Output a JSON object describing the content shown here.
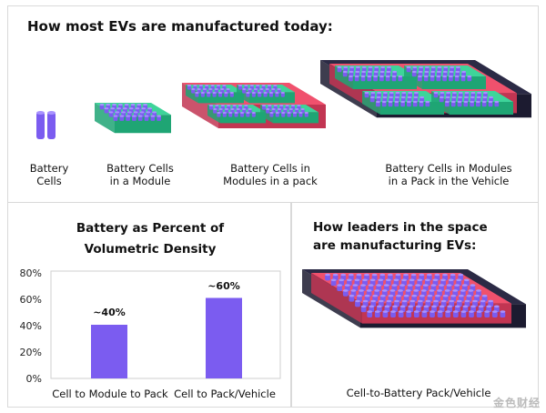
{
  "top_title": "How most EVs are manufactured today:",
  "stages": [
    {
      "label_line1": "Battery",
      "label_line2": "Cells"
    },
    {
      "label_line1": "Battery Cells",
      "label_line2": "in a Module"
    },
    {
      "label_line1": "Battery Cells in",
      "label_line2": "Modules in a pack"
    },
    {
      "label_line1": "Battery Cells in Modules",
      "label_line2": "in a Pack in the Vehicle"
    }
  ],
  "chart_title_line1": "Battery as Percent of",
  "chart_title_line2": "Volumetric Density",
  "right_title_line1": "How leaders in the space",
  "right_title_line2": "are manufacturing EVs:",
  "right_caption": "Cell-to-Battery Pack/Vehicle",
  "watermark": "金色财经",
  "colors": {
    "cell": "#7b5cf0",
    "cell_dark": "#4a2fc0",
    "module": "#3ed49a",
    "pack": "#f0516d",
    "vehicle": "#2b2a45",
    "bar": "#7b5cf0"
  },
  "chart_data": {
    "type": "bar",
    "categories": [
      "Cell to Module to Pack",
      "Cell to Pack/Vehicle"
    ],
    "values": [
      40,
      60
    ],
    "value_labels": [
      "~40%",
      "~60%"
    ],
    "ylim": [
      0,
      80
    ],
    "yticks": [
      "0%",
      "20%",
      "40%",
      "60%",
      "80%"
    ],
    "grid": false
  }
}
